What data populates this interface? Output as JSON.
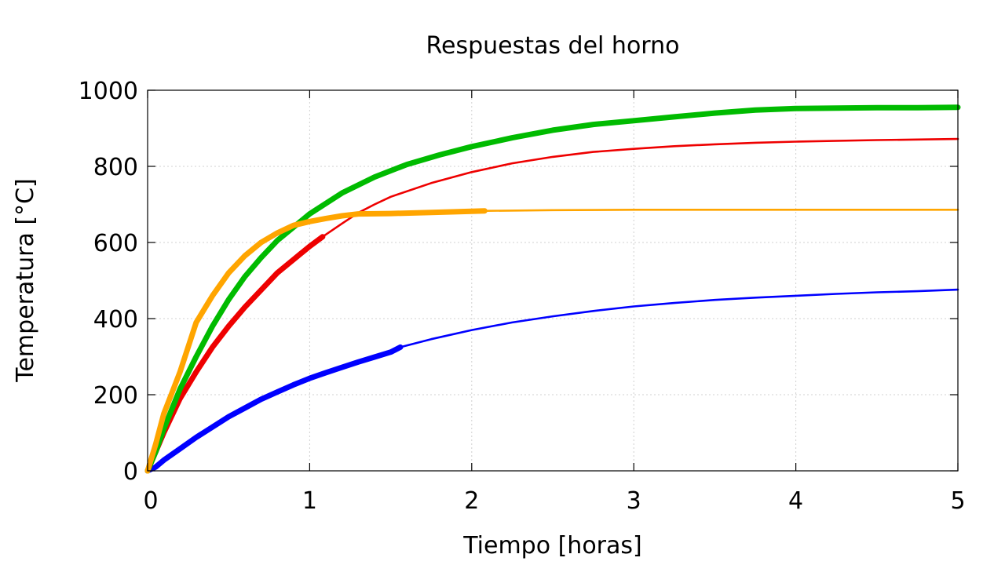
{
  "chart_data": {
    "type": "line",
    "title": "Respuestas del horno",
    "xlabel": "Tiempo [horas]",
    "ylabel": "Temperatura [°C]",
    "xlim": [
      0,
      5
    ],
    "ylim": [
      0,
      1000
    ],
    "xticks": [
      "0",
      "1",
      "2",
      "3",
      "4",
      "5"
    ],
    "yticks": [
      "0",
      "200",
      "400",
      "600",
      "800",
      "1000"
    ],
    "grid": true,
    "legend": "none",
    "series": [
      {
        "color": "#0000ff",
        "kind": "measured",
        "x": [
          0.0,
          0.05,
          0.1,
          0.2,
          0.3,
          0.4,
          0.5,
          0.6,
          0.7,
          0.8,
          0.9,
          1.0,
          1.1,
          1.2,
          1.3,
          1.4,
          1.5,
          1.56
        ],
        "y": [
          0,
          10,
          28,
          58,
          88,
          115,
          142,
          165,
          188,
          207,
          226,
          243,
          258,
          272,
          286,
          299,
          312,
          325
        ]
      },
      {
        "color": "#0000ff",
        "kind": "model",
        "x": [
          1.56,
          1.75,
          2.0,
          2.25,
          2.5,
          2.75,
          3.0,
          3.25,
          3.5,
          3.75,
          4.0,
          4.25,
          4.5,
          4.75,
          5.0
        ],
        "y": [
          325,
          346,
          370,
          390,
          406,
          420,
          432,
          441,
          449,
          455,
          460,
          465,
          469,
          472,
          476
        ]
      },
      {
        "color": "#ee0000",
        "kind": "measured",
        "x": [
          0.0,
          0.05,
          0.1,
          0.2,
          0.3,
          0.4,
          0.5,
          0.6,
          0.7,
          0.8,
          0.9,
          1.0,
          1.08
        ],
        "y": [
          0,
          50,
          100,
          190,
          260,
          325,
          380,
          430,
          475,
          520,
          555,
          590,
          615
        ]
      },
      {
        "color": "#ee0000",
        "kind": "model",
        "x": [
          1.08,
          1.2,
          1.3,
          1.4,
          1.5,
          1.75,
          2.0,
          2.25,
          2.5,
          2.75,
          3.0,
          3.25,
          3.5,
          3.75,
          4.0,
          4.5,
          5.0
        ],
        "y": [
          615,
          650,
          678,
          700,
          720,
          756,
          785,
          808,
          825,
          838,
          846,
          853,
          858,
          862,
          865,
          869,
          872
        ]
      },
      {
        "color": "#00bb00",
        "kind": "measured",
        "x": [
          0.0,
          0.05,
          0.1,
          0.2,
          0.3,
          0.4,
          0.5,
          0.6,
          0.7,
          0.8,
          0.9,
          1.0,
          1.2,
          1.4,
          1.6,
          1.8,
          2.0,
          2.25,
          2.5,
          2.75,
          3.0,
          3.25,
          3.5,
          3.75,
          4.0,
          4.25,
          4.5,
          4.75,
          5.0
        ],
        "y": [
          0,
          50,
          110,
          215,
          300,
          380,
          450,
          510,
          560,
          605,
          640,
          675,
          730,
          772,
          805,
          830,
          852,
          875,
          895,
          910,
          920,
          930,
          940,
          948,
          952,
          953,
          954,
          954,
          955
        ]
      },
      {
        "color": "#ffa500",
        "kind": "measured",
        "x": [
          0.0,
          0.05,
          0.1,
          0.15,
          0.2,
          0.3,
          0.4,
          0.5,
          0.6,
          0.7,
          0.8,
          0.9,
          1.0,
          1.1,
          1.2,
          1.3,
          1.5,
          1.75,
          2.0,
          2.08
        ],
        "y": [
          0,
          70,
          150,
          205,
          260,
          390,
          460,
          520,
          565,
          600,
          625,
          645,
          655,
          663,
          670,
          675,
          676,
          679,
          682,
          683
        ]
      },
      {
        "color": "#ffa500",
        "kind": "model",
        "x": [
          2.08,
          2.5,
          3.0,
          3.5,
          4.0,
          4.5,
          5.0
        ],
        "y": [
          683,
          685,
          686,
          686,
          686,
          686,
          686
        ]
      }
    ]
  }
}
